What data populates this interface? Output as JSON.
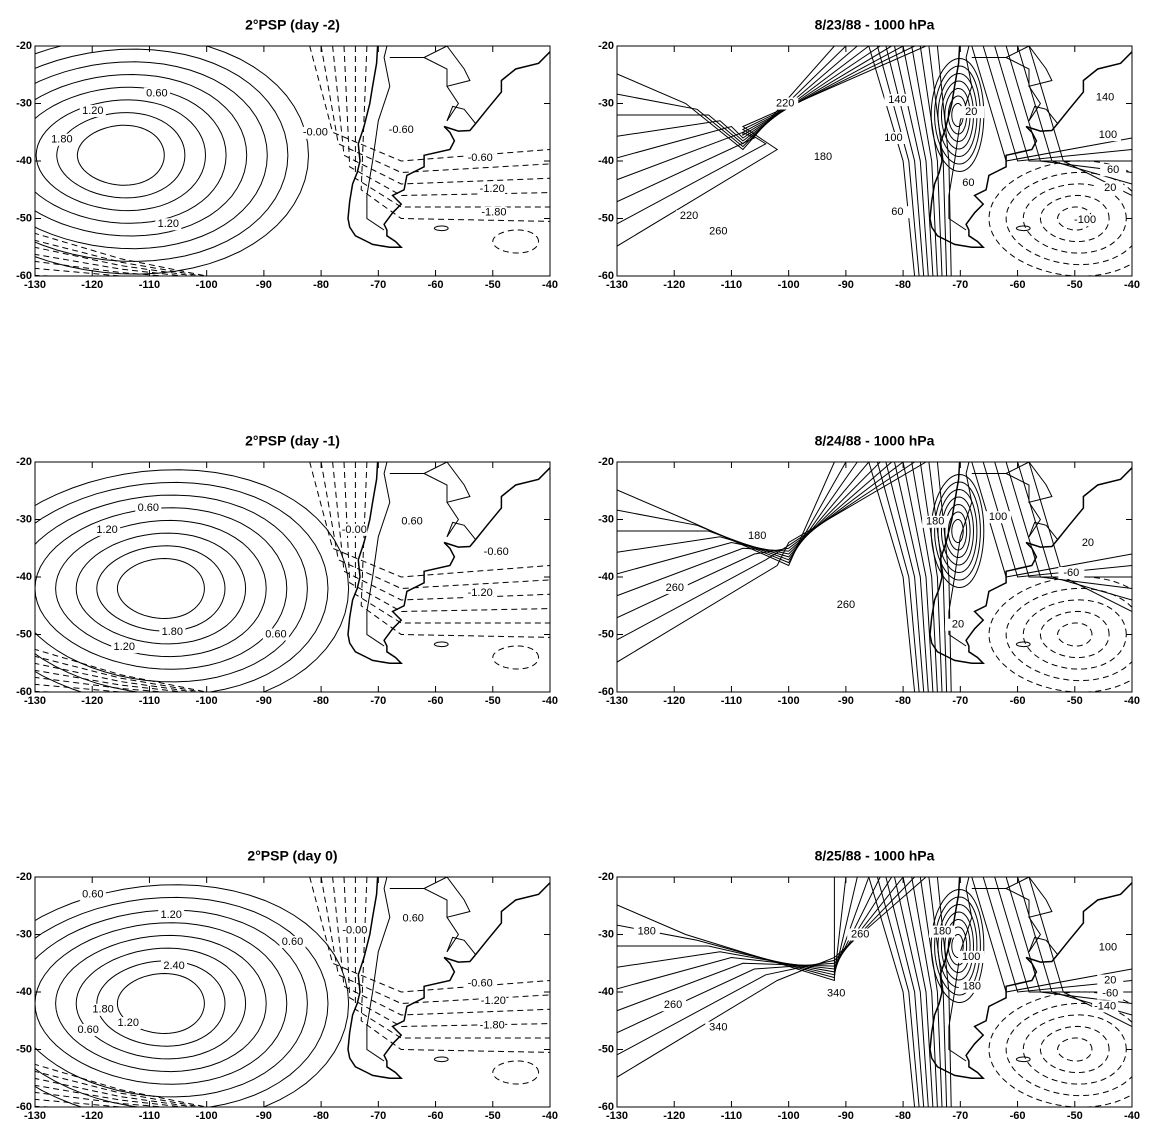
{
  "panels": [
    {
      "title": "2°PSP (day -2)",
      "xlim": [
        -130,
        -40
      ],
      "ylim": [
        -60,
        -20
      ],
      "xticks": [
        -130,
        -120,
        -110,
        -100,
        -90,
        -80,
        -70,
        -60,
        -50,
        -40
      ],
      "yticks": [
        -20,
        -30,
        -40,
        -50,
        -60
      ],
      "contour_labels": [
        {
          "label": "0.60",
          "lon": -108.7,
          "lat": -28.3
        },
        {
          "label": "1.20",
          "lon": -119.9,
          "lat": -31.3
        },
        {
          "label": "1.80",
          "lon": -125.3,
          "lat": -36.3
        },
        {
          "label": "1.20",
          "lon": -106.7,
          "lat": -51
        },
        {
          "label": "-0.00",
          "lon": -81,
          "lat": -35.1
        },
        {
          "label": "-0.60",
          "lon": -66,
          "lat": -34.6
        },
        {
          "label": "-0.60",
          "lon": -52.2,
          "lat": -39.5
        },
        {
          "label": "-1.20",
          "lon": -50.1,
          "lat": -44.9
        },
        {
          "label": "-1.80",
          "lon": -49.8,
          "lat": -49
        }
      ]
    },
    {
      "title": "8/23/88 - 1000 hPa",
      "xlim": [
        -130,
        -40
      ],
      "ylim": [
        -60,
        -20
      ],
      "xticks": [
        -130,
        -120,
        -110,
        -100,
        -90,
        -80,
        -70,
        -60,
        -50,
        -40
      ],
      "yticks": [
        -20,
        -30,
        -40,
        -50,
        -60
      ],
      "contour_labels": [
        {
          "label": "220",
          "lon": -100.6,
          "lat": -30
        },
        {
          "label": "140",
          "lon": -81,
          "lat": -29.4
        },
        {
          "label": "180",
          "lon": -94,
          "lat": -39.3
        },
        {
          "label": "100",
          "lon": -81.7,
          "lat": -36
        },
        {
          "label": "60",
          "lon": -81,
          "lat": -48.9
        },
        {
          "label": "220",
          "lon": -117.4,
          "lat": -49.6
        },
        {
          "label": "260",
          "lon": -112.3,
          "lat": -52.3
        },
        {
          "label": "20",
          "lon": -68.1,
          "lat": -31.5
        },
        {
          "label": "60",
          "lon": -68.6,
          "lat": -43.8
        },
        {
          "label": "140",
          "lon": -44.7,
          "lat": -29
        },
        {
          "label": "100",
          "lon": -44.2,
          "lat": -35.5
        },
        {
          "label": "60",
          "lon": -43.3,
          "lat": -41.6
        },
        {
          "label": "20",
          "lon": -43.8,
          "lat": -44.7
        },
        {
          "label": "-100",
          "lon": -48.2,
          "lat": -50.3
        }
      ]
    },
    {
      "title": "2°PSP (day -1)",
      "xlim": [
        -130,
        -40
      ],
      "ylim": [
        -60,
        -20
      ],
      "xticks": [
        -130,
        -120,
        -110,
        -100,
        -90,
        -80,
        -70,
        -60,
        -50,
        -40
      ],
      "yticks": [
        -20,
        -30,
        -40,
        -50,
        -60
      ],
      "contour_labels": [
        {
          "label": "0.60",
          "lon": -110.2,
          "lat": -28
        },
        {
          "label": "1.20",
          "lon": -117.4,
          "lat": -31.8
        },
        {
          "label": "1.80",
          "lon": -106,
          "lat": -49.6
        },
        {
          "label": "1.20",
          "lon": -114.4,
          "lat": -52.2
        },
        {
          "label": "0.60",
          "lon": -87.9,
          "lat": -50
        },
        {
          "label": "-0.00",
          "lon": -74.2,
          "lat": -31.8
        },
        {
          "label": "0.60",
          "lon": -64.1,
          "lat": -30.4
        },
        {
          "label": "-0.60",
          "lon": -49.4,
          "lat": -35.7
        },
        {
          "label": "-1.20",
          "lon": -52.2,
          "lat": -42.8
        }
      ]
    },
    {
      "title": "8/24/88 - 1000 hPa",
      "xlim": [
        -130,
        -40
      ],
      "ylim": [
        -60,
        -20
      ],
      "xticks": [
        -130,
        -120,
        -110,
        -100,
        -90,
        -80,
        -70,
        -60,
        -50,
        -40
      ],
      "yticks": [
        -20,
        -30,
        -40,
        -50,
        -60
      ],
      "contour_labels": [
        {
          "label": "180",
          "lon": -105.5,
          "lat": -32.9
        },
        {
          "label": "260",
          "lon": -119.9,
          "lat": -41.9
        },
        {
          "label": "260",
          "lon": -90,
          "lat": -44.9
        },
        {
          "label": "180",
          "lon": -74.4,
          "lat": -30.4
        },
        {
          "label": "100",
          "lon": -63.4,
          "lat": -29.6
        },
        {
          "label": "20",
          "lon": -47.7,
          "lat": -34.1
        },
        {
          "label": "-60",
          "lon": -50.6,
          "lat": -39.3
        },
        {
          "label": "20",
          "lon": -70.4,
          "lat": -48.3
        }
      ]
    },
    {
      "title": "2°PSP (day 0)",
      "xlim": [
        -130,
        -40
      ],
      "ylim": [
        -60,
        -20
      ],
      "xticks": [
        -130,
        -120,
        -110,
        -100,
        -90,
        -80,
        -70,
        -60,
        -50,
        -40
      ],
      "yticks": [
        -20,
        -30,
        -40,
        -50,
        -60
      ],
      "contour_labels": [
        {
          "label": "0.60",
          "lon": -119.9,
          "lat": -23.1
        },
        {
          "label": "1.20",
          "lon": -106.2,
          "lat": -26.6
        },
        {
          "label": "0.60",
          "lon": -85,
          "lat": -31.3
        },
        {
          "label": "2.40",
          "lon": -105.7,
          "lat": -35.5
        },
        {
          "label": "1.80",
          "lon": -118.1,
          "lat": -43.1
        },
        {
          "label": "1.20",
          "lon": -113.7,
          "lat": -45.4
        },
        {
          "label": "0.60",
          "lon": -120.7,
          "lat": -46.6
        },
        {
          "label": "-0.00",
          "lon": -74.1,
          "lat": -29.3
        },
        {
          "label": "0.60",
          "lon": -63.9,
          "lat": -27.2
        },
        {
          "label": "-0.60",
          "lon": -52.2,
          "lat": -38.5
        },
        {
          "label": "-1.20",
          "lon": -49.9,
          "lat": -41.6
        },
        {
          "label": "-1.80",
          "lon": -50.1,
          "lat": -45.8
        }
      ]
    },
    {
      "title": "8/25/88 - 1000 hPa",
      "xlim": [
        -130,
        -40
      ],
      "ylim": [
        -60,
        -20
      ],
      "xticks": [
        -130,
        -120,
        -110,
        -100,
        -90,
        -80,
        -70,
        -60,
        -50,
        -40
      ],
      "yticks": [
        -20,
        -30,
        -40,
        -50,
        -60
      ],
      "contour_labels": [
        {
          "label": "180",
          "lon": -124.8,
          "lat": -29.5
        },
        {
          "label": "260",
          "lon": -87.5,
          "lat": -30
        },
        {
          "label": "260",
          "lon": -120.2,
          "lat": -42.3
        },
        {
          "label": "340",
          "lon": -112.3,
          "lat": -46.2
        },
        {
          "label": "340",
          "lon": -91.7,
          "lat": -40.3
        },
        {
          "label": "180",
          "lon": -73.2,
          "lat": -29.5
        },
        {
          "label": "100",
          "lon": -68.1,
          "lat": -33.9
        },
        {
          "label": "180",
          "lon": -68,
          "lat": -39.1
        },
        {
          "label": "100",
          "lon": -44.2,
          "lat": -32.3
        },
        {
          "label": "20",
          "lon": -43.8,
          "lat": -38
        },
        {
          "label": "-60",
          "lon": -43.8,
          "lat": -40.3
        },
        {
          "label": "-140",
          "lon": -44.7,
          "lat": -42.5
        }
      ]
    }
  ]
}
